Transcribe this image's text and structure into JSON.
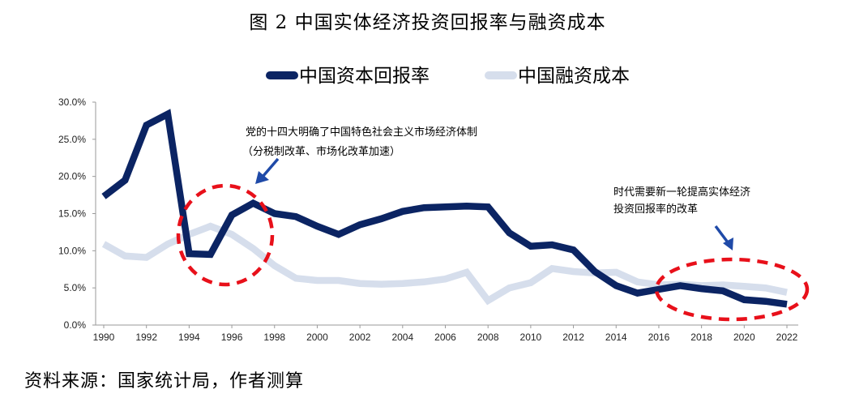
{
  "figure_title": "图 2  中国实体经济投资回报率与融资成本",
  "source_note": "资料来源：国家统计局，作者测算",
  "colors": {
    "return_series": "#0b2463",
    "cost_series": "#d6deec",
    "highlight": "#e8101a",
    "arrow": "#1f4aa8"
  },
  "annotations": [
    {
      "lines": [
        "党的十四大明确了中国特色社会主义市场经济体制",
        "（分税制改革、市场化改革加速）"
      ]
    },
    {
      "lines": [
        "时代需要新一轮提高实体经济",
        "投资回报率的改革"
      ]
    }
  ],
  "chart_data": {
    "type": "line",
    "title": "",
    "xlabel": "",
    "ylabel": "",
    "x": [
      1990,
      1991,
      1992,
      1993,
      1994,
      1995,
      1996,
      1997,
      1998,
      1999,
      2000,
      2001,
      2002,
      2003,
      2004,
      2005,
      2006,
      2007,
      2008,
      2009,
      2010,
      2011,
      2012,
      2013,
      2014,
      2015,
      2016,
      2017,
      2018,
      2019,
      2020,
      2021,
      2022
    ],
    "xlim": [
      1990,
      2022
    ],
    "ylim": [
      0,
      30
    ],
    "x_ticks": [
      "1990",
      "1992",
      "1994",
      "1996",
      "1998",
      "2000",
      "2002",
      "2004",
      "2006",
      "2008",
      "2010",
      "2012",
      "2014",
      "2016",
      "2018",
      "2020",
      "2022"
    ],
    "y_ticks": [
      "0.0%",
      "5.0%",
      "10.0%",
      "15.0%",
      "20.0%",
      "25.0%",
      "30.0%"
    ],
    "legend_position": "top",
    "grid": false,
    "series": [
      {
        "name": "中国资本回报率",
        "values": [
          17.3,
          19.5,
          26.9,
          28.4,
          9.6,
          9.5,
          14.8,
          16.4,
          15.0,
          14.6,
          13.3,
          12.2,
          13.5,
          14.3,
          15.3,
          15.8,
          15.9,
          16.0,
          15.9,
          12.4,
          10.6,
          10.8,
          10.1,
          7.2,
          5.3,
          4.3,
          4.8,
          5.3,
          4.9,
          4.6,
          3.4,
          3.2,
          2.8
        ]
      },
      {
        "name": "中国融资成本",
        "values": [
          10.9,
          9.3,
          9.1,
          10.9,
          12.2,
          13.3,
          12.2,
          10.3,
          8.0,
          6.3,
          6.0,
          6.0,
          5.6,
          5.5,
          5.6,
          5.8,
          6.2,
          7.1,
          3.3,
          5.0,
          5.7,
          7.6,
          7.2,
          7.0,
          7.1,
          5.8,
          5.4,
          5.5,
          5.3,
          5.4,
          5.2,
          5.0,
          4.4
        ]
      }
    ]
  }
}
